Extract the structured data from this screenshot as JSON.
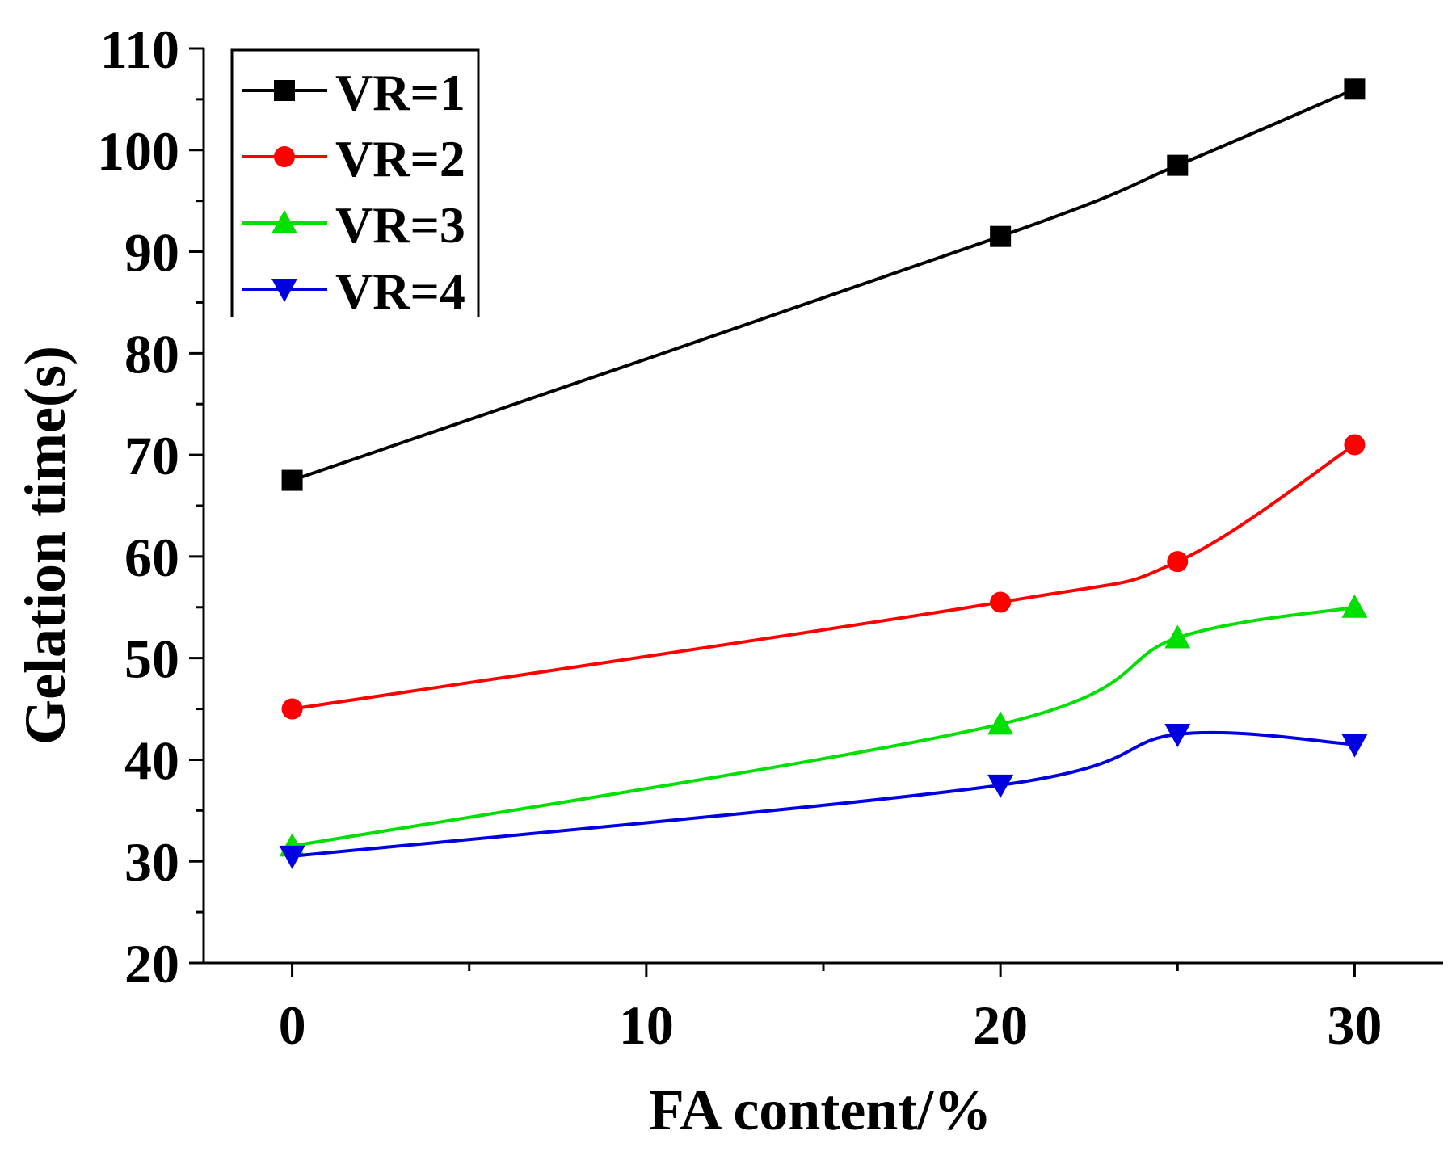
{
  "chart_data": {
    "type": "line",
    "title": "",
    "xlabel": "FA content/%",
    "ylabel": "Gelation time(s)",
    "xlim": [
      -2.5,
      32.5
    ],
    "ylim": [
      20,
      110
    ],
    "x_ticks": [
      0,
      10,
      20,
      30
    ],
    "x_minor_ticks": [
      5,
      15,
      25
    ],
    "y_ticks": [
      20,
      30,
      40,
      50,
      60,
      70,
      80,
      90,
      100,
      110
    ],
    "y_minor_ticks": [
      25,
      35,
      45,
      55,
      65,
      75,
      85,
      95,
      105
    ],
    "grid": false,
    "legend_position": "top-left",
    "x": [
      0,
      20,
      25,
      30
    ],
    "series": [
      {
        "name": "VR=1",
        "values": [
          67.5,
          91.5,
          98.5,
          106
        ],
        "color": "#000000",
        "marker": "square"
      },
      {
        "name": "VR=2",
        "values": [
          45,
          55.5,
          59.5,
          71
        ],
        "color": "#ff0000",
        "marker": "circle"
      },
      {
        "name": "VR=3",
        "values": [
          31.5,
          43.5,
          52,
          55
        ],
        "color": "#00e000",
        "marker": "triangle-up"
      },
      {
        "name": "VR=4",
        "values": [
          30.5,
          37.5,
          42.5,
          41.5
        ],
        "color": "#0000e0",
        "marker": "triangle-down"
      }
    ]
  }
}
